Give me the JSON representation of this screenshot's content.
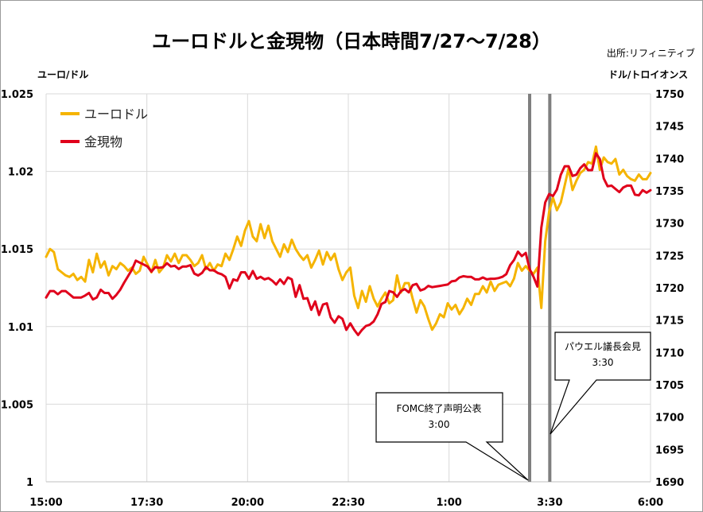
{
  "chart_data": {
    "type": "line",
    "title": "ユーロドルと金現物（日本時間7/27～7/28）",
    "source": "出所:リフィニティブ",
    "ylabel_left": "ユーロ/ドル",
    "ylabel_right": "ドル/トロイオンス",
    "ylim_left": [
      1,
      1.025
    ],
    "ylim_right": [
      1690,
      1750
    ],
    "yticks_left": [
      "1.025",
      "1.02",
      "1.015",
      "1.01",
      "1.005",
      "1"
    ],
    "yticks_right": [
      "1750",
      "1745",
      "1740",
      "1735",
      "1730",
      "1725",
      "1720",
      "1715",
      "1710",
      "1705",
      "1700",
      "1695",
      "1690"
    ],
    "xticks": [
      "15:00",
      "17:30",
      "20:00",
      "22:30",
      "1:00",
      "3:30",
      "6:00"
    ],
    "grid": true,
    "legend_position": "top-left",
    "series": [
      {
        "name": "ユーロドル",
        "axis": "left",
        "color": "#F5B400",
        "values": [
          1.0145,
          1.015,
          1.0148,
          1.0137,
          1.0135,
          1.0133,
          1.0132,
          1.0134,
          1.013,
          1.0132,
          1.0129,
          1.0143,
          1.0135,
          1.0147,
          1.0138,
          1.0142,
          1.0133,
          1.0139,
          1.0137,
          1.0141,
          1.0139,
          1.0136,
          1.0138,
          1.0134,
          1.0136,
          1.0145,
          1.014,
          1.0135,
          1.0143,
          1.0135,
          1.0138,
          1.0146,
          1.0142,
          1.0147,
          1.0141,
          1.0146,
          1.0146,
          1.0143,
          1.0139,
          1.0141,
          1.0146,
          1.0137,
          1.0141,
          1.0136,
          1.014,
          1.0139,
          1.0147,
          1.0143,
          1.015,
          1.0158,
          1.0152,
          1.0162,
          1.0168,
          1.0158,
          1.0155,
          1.0166,
          1.0157,
          1.0165,
          1.0155,
          1.015,
          1.0145,
          1.0153,
          1.0148,
          1.0156,
          1.015,
          1.0146,
          1.0143,
          1.0146,
          1.0138,
          1.0143,
          1.0149,
          1.014,
          1.0148,
          1.0143,
          1.0147,
          1.0137,
          1.013,
          1.0135,
          1.0138,
          1.012,
          1.0112,
          1.0123,
          1.0116,
          1.0126,
          1.0118,
          1.0113,
          1.0118,
          1.0122,
          1.0115,
          1.0117,
          1.0133,
          1.0122,
          1.0128,
          1.0128,
          1.0118,
          1.0109,
          1.0117,
          1.0113,
          1.0105,
          1.0098,
          1.0102,
          1.0108,
          1.0106,
          1.0115,
          1.0111,
          1.0114,
          1.0108,
          1.0112,
          1.0118,
          1.0114,
          1.0121,
          1.0121,
          1.0126,
          1.0122,
          1.0129,
          1.0123,
          1.0127,
          1.0128,
          1.0129,
          1.0126,
          1.0131,
          1.0141,
          1.0136,
          1.0139,
          1.0136,
          1.0134,
          1.0138,
          1.0112,
          1.0155,
          1.0174,
          1.0183,
          1.0175,
          1.018,
          1.0191,
          1.0202,
          1.0188,
          1.0194,
          1.0199,
          1.0201,
          1.0206,
          1.0205,
          1.0216,
          1.0201,
          1.0209,
          1.0206,
          1.0205,
          1.0208,
          1.0198,
          1.0201,
          1.0197,
          1.0195,
          1.0194,
          1.0198,
          1.0195,
          1.0195,
          1.0199
        ]
      },
      {
        "name": "金現物",
        "axis": "right",
        "color": "#E0001B",
        "values": [
          1718.5,
          1719.5,
          1719.5,
          1719,
          1719.5,
          1719.5,
          1719,
          1718.5,
          1718.5,
          1718.5,
          1718.8,
          1719.2,
          1718.2,
          1718.5,
          1719.7,
          1719.2,
          1719.2,
          1718.3,
          1718.9,
          1719.7,
          1720.8,
          1721.8,
          1722.8,
          1724.2,
          1723.9,
          1723.6,
          1723.3,
          1722.5,
          1723.2,
          1723.1,
          1723.2,
          1723.8,
          1723.3,
          1723.4,
          1722.9,
          1723.3,
          1723.3,
          1723.5,
          1722.2,
          1721.9,
          1722.3,
          1723.2,
          1722.7,
          1722.7,
          1722.3,
          1722.1,
          1721.7,
          1719.9,
          1721.3,
          1721.1,
          1722.4,
          1722.4,
          1721.4,
          1722.6,
          1721.4,
          1721.7,
          1721.3,
          1721.5,
          1721.1,
          1720.5,
          1721.3,
          1720.6,
          1721.6,
          1721.3,
          1718.6,
          1720.4,
          1718.3,
          1718.4,
          1716.6,
          1717.9,
          1715.8,
          1717.4,
          1717.6,
          1715.4,
          1714.6,
          1715.6,
          1715.2,
          1713.5,
          1714.5,
          1713.5,
          1712.7,
          1713.5,
          1714.1,
          1714.3,
          1714.8,
          1715.9,
          1717.5,
          1717.8,
          1719.5,
          1719.3,
          1718.6,
          1719.5,
          1719.8,
          1719.3,
          1720.4,
          1720.6,
          1719.6,
          1719.8,
          1720.3,
          1720.1,
          1720.2,
          1720.3,
          1720.4,
          1720.5,
          1721,
          1721.1,
          1721.6,
          1721.8,
          1721.7,
          1721.7,
          1721.3,
          1721.3,
          1721.6,
          1721.3,
          1721.4,
          1721.4,
          1721.5,
          1721.7,
          1722.1,
          1723.5,
          1724.3,
          1725.6,
          1724.9,
          1725.4,
          1722.9,
          1721.7,
          1720.2,
          1729.3,
          1733.2,
          1734.5,
          1734.2,
          1735.2,
          1737.5,
          1738.8,
          1738.8,
          1737.3,
          1737.5,
          1738.5,
          1739.1,
          1738.2,
          1738.2,
          1740.8,
          1739.9,
          1736.9,
          1735.7,
          1735.8,
          1735.3,
          1734.8,
          1735.5,
          1735.8,
          1735.8,
          1734.4,
          1734.3,
          1735.1,
          1734.7,
          1735.1
        ]
      }
    ],
    "vlines": [
      {
        "at": "3:00",
        "label": "FOMC終了声明公表",
        "time": "3:00"
      },
      {
        "at": "3:30",
        "label": "パウエル議長会見",
        "time": "3:30"
      }
    ]
  }
}
